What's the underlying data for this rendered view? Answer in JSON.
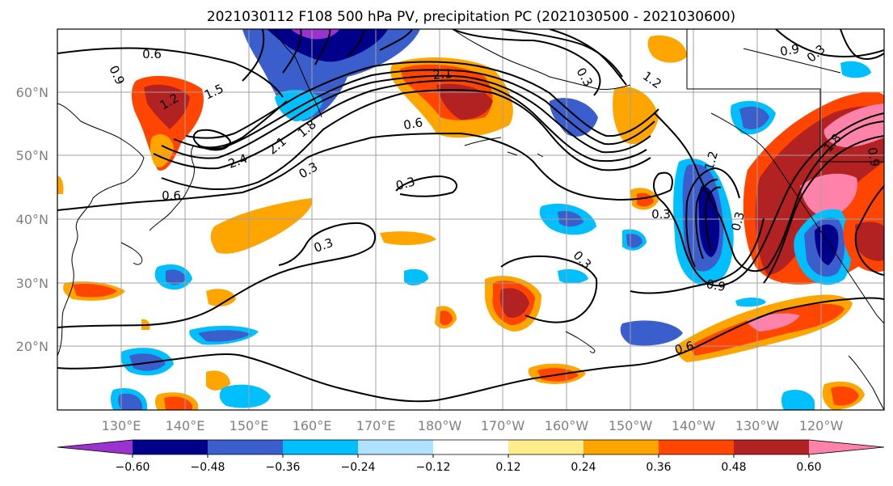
{
  "title": "2021030112 F108 500 hPa PV, precipitation PC (2021030500 - 2021030600)",
  "lat_labels": [
    "60°N",
    "50°N",
    "40°N",
    "30°N",
    "20°N"
  ],
  "lon_labels": [
    "130°E",
    "140°E",
    "150°E",
    "160°E",
    "170°E",
    "180°W",
    "170°W",
    "160°W",
    "150°W",
    "140°W",
    "130°W",
    "120°W"
  ],
  "colorbar": {
    "ticks": [
      "−0.60",
      "−0.48",
      "−0.36",
      "−0.24",
      "−0.12",
      "0.12",
      "0.24",
      "0.36",
      "0.48",
      "0.60"
    ],
    "colors": [
      "#9a32cd",
      "#00008b",
      "#3a5fcd",
      "#00bfff",
      "#b0e2ff",
      "#ffffff",
      "#ffec8b",
      "#ffa500",
      "#ff4500",
      "#b22222",
      "#ff82ab"
    ]
  },
  "contour_labels": [
    "0.6",
    "0.9",
    "1.2",
    "1.5",
    "2.4",
    "2.1",
    "1.8",
    "0.3",
    "0.6",
    "0.3",
    "0.6",
    "0.3",
    "0.3",
    "0.3",
    "0.9",
    "1.2",
    "0.3",
    "0.6",
    "1.2",
    "0.9",
    "0.3",
    "1.8",
    "0.9",
    "0.3",
    "2.1"
  ]
}
